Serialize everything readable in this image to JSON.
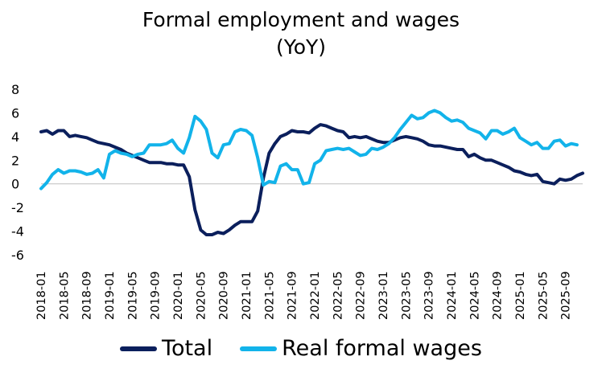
{
  "chart_data": {
    "type": "line",
    "title": "Formal employment and wages",
    "subtitle": "(YoY)",
    "xlabel": "",
    "ylabel": "",
    "ylim": [
      -6,
      8
    ],
    "yticks": [
      "-6",
      "-4",
      "-2",
      "0",
      "2",
      "4",
      "6",
      "8"
    ],
    "x_tick_labels": [
      "2018-01",
      "2018-05",
      "2018-09",
      "2019-01",
      "2019-05",
      "2019-09",
      "2020-01",
      "2020-05",
      "2020-09",
      "2021-01",
      "2021-05",
      "2021-09",
      "2022-01",
      "2022-05",
      "2022-09",
      "2023-01",
      "2023-05",
      "2023-09",
      "2024-01",
      "2024-05",
      "2024-09",
      "2025-01",
      "2025-05",
      "2025-09"
    ],
    "x_start": "2018-01",
    "x_end": "2025-12",
    "grid": false,
    "legend_position": "bottom",
    "series": [
      {
        "name": "Total",
        "color": "#0b1f5c",
        "values": [
          4.4,
          4.5,
          4.2,
          4.5,
          4.5,
          4.0,
          4.1,
          4.0,
          3.9,
          3.7,
          3.5,
          3.4,
          3.3,
          3.1,
          2.9,
          2.6,
          2.4,
          2.2,
          2.0,
          1.8,
          1.8,
          1.8,
          1.7,
          1.7,
          1.6,
          1.6,
          0.6,
          -2.2,
          -3.9,
          -4.3,
          -4.3,
          -4.1,
          -4.2,
          -3.9,
          -3.5,
          -3.2,
          -3.2,
          -3.2,
          -2.3,
          0.5,
          2.6,
          3.4,
          4.0,
          4.2,
          4.5,
          4.4,
          4.4,
          4.3,
          4.7,
          5.0,
          4.9,
          4.7,
          4.5,
          4.4,
          3.9,
          4.0,
          3.9,
          4.0,
          3.8,
          3.6,
          3.5,
          3.5,
          3.7,
          3.9,
          4.0,
          3.9,
          3.8,
          3.6,
          3.3,
          3.2,
          3.2,
          3.1,
          3.0,
          2.9,
          2.9,
          2.3,
          2.5,
          2.2,
          2.0,
          2.0,
          1.8,
          1.6,
          1.4,
          1.1,
          1.0,
          0.8,
          0.7,
          0.8,
          0.2,
          0.1,
          0.0,
          0.4,
          0.3,
          0.4,
          0.7,
          0.9
        ]
      },
      {
        "name": "Real formal wages",
        "color": "#12b3ea",
        "values": [
          -0.4,
          0.1,
          0.8,
          1.2,
          0.9,
          1.1,
          1.1,
          1.0,
          0.8,
          0.9,
          1.2,
          0.5,
          2.5,
          2.8,
          2.6,
          2.5,
          2.3,
          2.5,
          2.6,
          3.3,
          3.3,
          3.3,
          3.4,
          3.7,
          3.0,
          2.6,
          3.9,
          5.7,
          5.3,
          4.6,
          2.6,
          2.2,
          3.3,
          3.4,
          4.4,
          4.6,
          4.5,
          4.1,
          2.2,
          -0.1,
          0.2,
          0.1,
          1.5,
          1.7,
          1.2,
          1.2,
          0.0,
          0.1,
          1.7,
          2.0,
          2.8,
          2.9,
          3.0,
          2.9,
          3.0,
          2.7,
          2.4,
          2.5,
          3.0,
          2.9,
          3.1,
          3.4,
          3.9,
          4.6,
          5.2,
          5.8,
          5.5,
          5.6,
          6.0,
          6.2,
          6.0,
          5.6,
          5.3,
          5.4,
          5.2,
          4.7,
          4.5,
          4.3,
          3.8,
          4.5,
          4.5,
          4.2,
          4.4,
          4.7,
          3.9,
          3.6,
          3.3,
          3.5,
          3.0,
          3.0,
          3.6,
          3.7,
          3.2,
          3.4,
          3.3
        ]
      }
    ]
  }
}
